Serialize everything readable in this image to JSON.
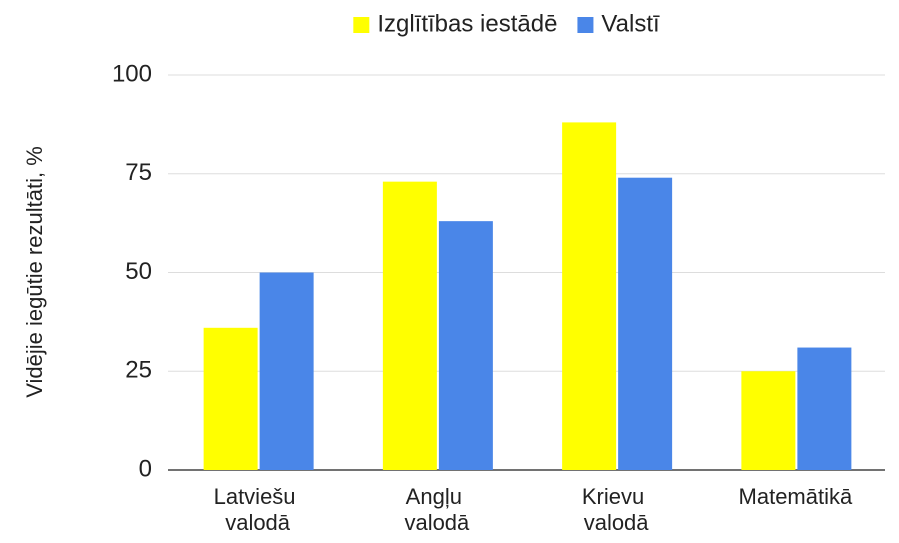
{
  "chart_data": {
    "type": "bar",
    "categories": [
      "Latviešu valodā",
      "Angļu valodā",
      "Krievu valodā",
      "Matemātikā"
    ],
    "series": [
      {
        "name": "Izglītības iestādē",
        "color": "#ffff00",
        "values": [
          36,
          73,
          88,
          25
        ]
      },
      {
        "name": "Valstī",
        "color": "#4a86e8",
        "values": [
          50,
          63,
          74,
          31
        ]
      }
    ],
    "y_label": "Vidējie iegūtie rezultāti, %",
    "ylim": [
      0,
      100
    ],
    "yticks": [
      0,
      25,
      50,
      75,
      100
    ],
    "grid": true,
    "legend": "top"
  }
}
